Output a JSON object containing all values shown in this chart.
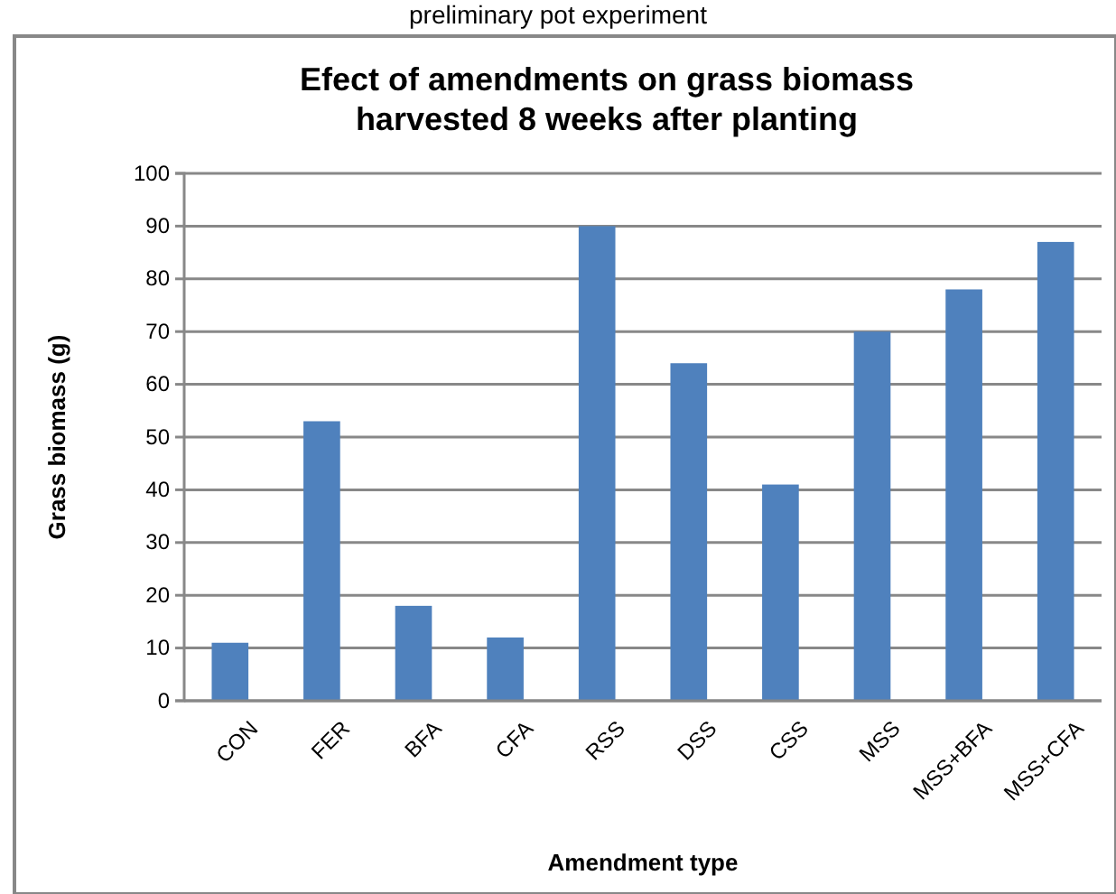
{
  "chart_data": {
    "type": "bar",
    "title": "Efect of amendments on grass biomass harvested 8 weeks after planting",
    "xlabel": "Amendment type",
    "ylabel": "Grass biomass (g)",
    "annotations": [
      "preliminary pot experiment"
    ],
    "categories": [
      "CON",
      "FER",
      "BFA",
      "CFA",
      "RSS",
      "DSS",
      "CSS",
      "MSS",
      "MSS+BFA",
      "MSS+CFA"
    ],
    "values": [
      11,
      53,
      18,
      12,
      90,
      64,
      41,
      70,
      78,
      87
    ],
    "color": "#4f81bd",
    "ylim": [
      0,
      100
    ],
    "yticks": [
      0,
      10,
      20,
      30,
      40,
      50,
      60,
      70,
      80,
      90,
      100
    ],
    "grid": "y"
  }
}
